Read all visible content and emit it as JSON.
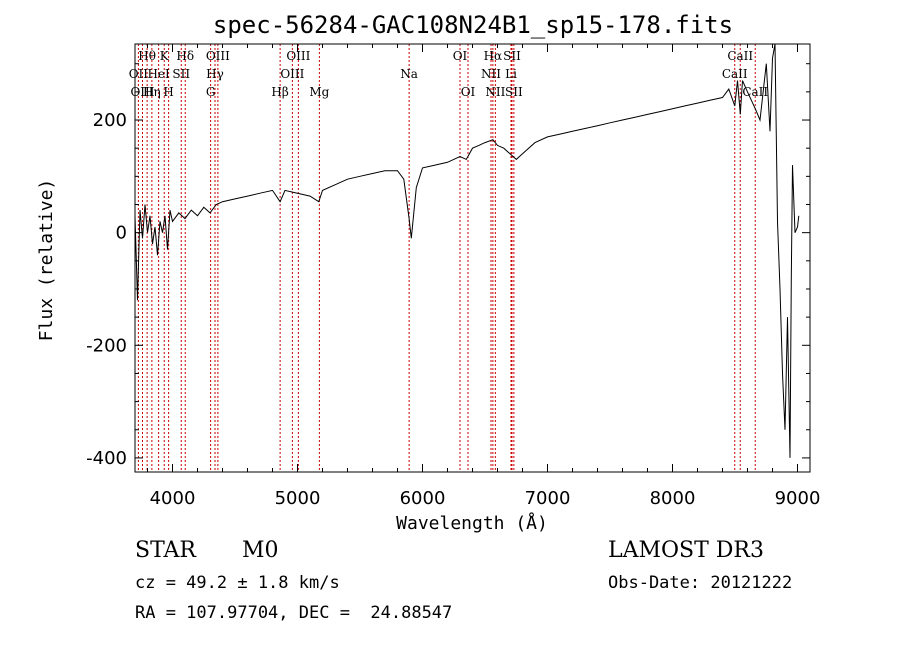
{
  "chart_data": {
    "type": "line",
    "title": "spec-56284-GAC108N24B1_sp15-178.fits",
    "xlabel": "Wavelength (Å)",
    "ylabel": "Flux (relative)",
    "xlim": [
      3700,
      9100
    ],
    "ylim": [
      -425,
      335
    ],
    "xticks": [
      4000,
      5000,
      6000,
      7000,
      8000,
      9000
    ],
    "yticks": [
      -400,
      -200,
      0,
      200
    ],
    "series": [
      {
        "name": "spectrum",
        "x": [
          3700,
          3720,
          3740,
          3760,
          3780,
          3800,
          3820,
          3840,
          3860,
          3880,
          3900,
          3920,
          3940,
          3960,
          3980,
          4000,
          4050,
          4100,
          4150,
          4200,
          4250,
          4300,
          4350,
          4400,
          4500,
          4600,
          4700,
          4800,
          4861,
          4900,
          5000,
          5100,
          5170,
          5200,
          5300,
          5400,
          5500,
          5600,
          5700,
          5800,
          5850,
          5893,
          5910,
          5950,
          6000,
          6100,
          6200,
          6300,
          6350,
          6400,
          6450,
          6500,
          6563,
          6600,
          6650,
          6700,
          6750,
          6800,
          6900,
          7000,
          7100,
          7200,
          7300,
          7400,
          7500,
          7600,
          7700,
          7800,
          7900,
          8000,
          8100,
          8200,
          8300,
          8400,
          8450,
          8498,
          8520,
          8542,
          8560,
          8600,
          8662,
          8700,
          8750,
          8780,
          8800,
          8820,
          8840,
          8860,
          8880,
          8900,
          8920,
          8940,
          8950,
          8960,
          8980,
          9000,
          9010
        ],
        "y": [
          30,
          -120,
          40,
          -10,
          50,
          0,
          30,
          -20,
          10,
          -40,
          20,
          0,
          30,
          -30,
          40,
          20,
          35,
          25,
          40,
          30,
          45,
          35,
          50,
          55,
          60,
          65,
          70,
          75,
          55,
          75,
          70,
          65,
          55,
          75,
          85,
          95,
          100,
          105,
          110,
          110,
          95,
          25,
          -10,
          80,
          115,
          120,
          125,
          135,
          130,
          150,
          155,
          160,
          165,
          155,
          150,
          140,
          130,
          140,
          160,
          170,
          175,
          180,
          185,
          190,
          195,
          200,
          205,
          210,
          215,
          220,
          225,
          230,
          235,
          240,
          255,
          225,
          270,
          210,
          270,
          250,
          220,
          200,
          300,
          180,
          310,
          335,
          20,
          -100,
          -250,
          -350,
          -150,
          -400,
          -80,
          120,
          0,
          10,
          30
        ]
      }
    ],
    "lines": [
      {
        "label": "Hθ",
        "x": 3797,
        "row": 0
      },
      {
        "label": "OII",
        "x": 3727,
        "row": 1
      },
      {
        "label": "OIII",
        "x": 3760,
        "row": 2
      },
      {
        "label": "Hη",
        "x": 3835,
        "row": 2
      },
      {
        "label": "K",
        "x": 3934,
        "row": 0
      },
      {
        "label": "HeI",
        "x": 3889,
        "row": 1
      },
      {
        "label": "SII",
        "x": 4070,
        "row": 1
      },
      {
        "label": "H",
        "x": 3969,
        "row": 2
      },
      {
        "label": "Hδ",
        "x": 4102,
        "row": 0
      },
      {
        "label": "OIII",
        "x": 4363,
        "row": 0
      },
      {
        "label": "Hγ",
        "x": 4340,
        "row": 1
      },
      {
        "label": "G",
        "x": 4305,
        "row": 2
      },
      {
        "label": "Hβ",
        "x": 4861,
        "row": 2
      },
      {
        "label": "OIII",
        "x": 5007,
        "row": 0
      },
      {
        "label": "OIII",
        "x": 4959,
        "row": 1
      },
      {
        "label": "Mg",
        "x": 5175,
        "row": 2
      },
      {
        "label": "Na",
        "x": 5893,
        "row": 1
      },
      {
        "label": "OI",
        "x": 6300,
        "row": 0
      },
      {
        "label": "OI",
        "x": 6364,
        "row": 2
      },
      {
        "label": "Hα",
        "x": 6563,
        "row": 0
      },
      {
        "label": "SII",
        "x": 6716,
        "row": 0
      },
      {
        "label": "NII",
        "x": 6548,
        "row": 1
      },
      {
        "label": "Li",
        "x": 6708,
        "row": 1
      },
      {
        "label": "NII",
        "x": 6583,
        "row": 2
      },
      {
        "label": "SII",
        "x": 6731,
        "row": 2
      },
      {
        "label": "CaII",
        "x": 8542,
        "row": 0
      },
      {
        "label": "CaII",
        "x": 8498,
        "row": 1
      },
      {
        "label": "CaII",
        "x": 8662,
        "row": 2
      }
    ]
  },
  "info": {
    "object_class": "STAR",
    "subclass": "M0",
    "survey": "LAMOST DR3",
    "redshift": "cz = 49.2 ± 1.8 km/s",
    "obs_date": "Obs-Date: 20121222",
    "coords": "RA = 107.97704, DEC =  24.88547"
  },
  "colors": {
    "line_marker": "#cc0000",
    "spectrum": "#000000"
  }
}
